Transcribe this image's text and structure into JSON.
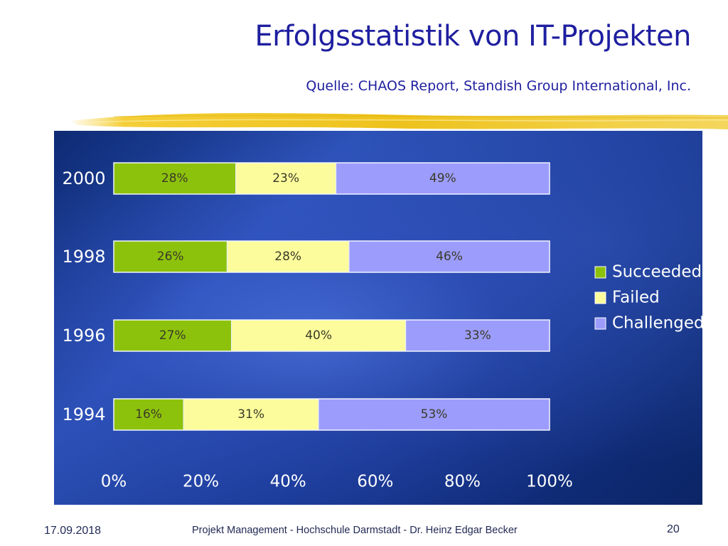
{
  "slide": {
    "title": "Erfolgsstatistik von IT-Projekten",
    "subtitle": "Quelle: CHAOS Report, Standish Group International, Inc."
  },
  "footer": {
    "date": "17.09.2018",
    "text": "Projekt Management - Hochschule Darmstadt - Dr. Heinz Edgar Becker",
    "page": "20"
  },
  "colors": {
    "title": "#1f1fa0",
    "succeeded": "#8dc20c",
    "failed": "#fcfc9c",
    "challenged": "#9c9cfc"
  },
  "chart_data": {
    "type": "bar",
    "orientation": "horizontal",
    "stacked": true,
    "categories": [
      "2000",
      "1998",
      "1996",
      "1994"
    ],
    "series": [
      {
        "name": "Succeeded",
        "values": [
          28,
          26,
          27,
          16
        ],
        "labels": [
          "28%",
          "26%",
          "27%",
          "16%"
        ]
      },
      {
        "name": "Failed",
        "values": [
          23,
          28,
          40,
          31
        ],
        "labels": [
          "23%",
          "28%",
          "40%",
          "31%"
        ]
      },
      {
        "name": "Challenged",
        "values": [
          49,
          46,
          33,
          53
        ],
        "labels": [
          "49%",
          "46%",
          "33%",
          "53%"
        ]
      }
    ],
    "x_ticks": [
      "0%",
      "20%",
      "40%",
      "60%",
      "80%",
      "100%"
    ],
    "xlim": [
      0,
      100
    ],
    "grid": false,
    "legend": "right"
  }
}
